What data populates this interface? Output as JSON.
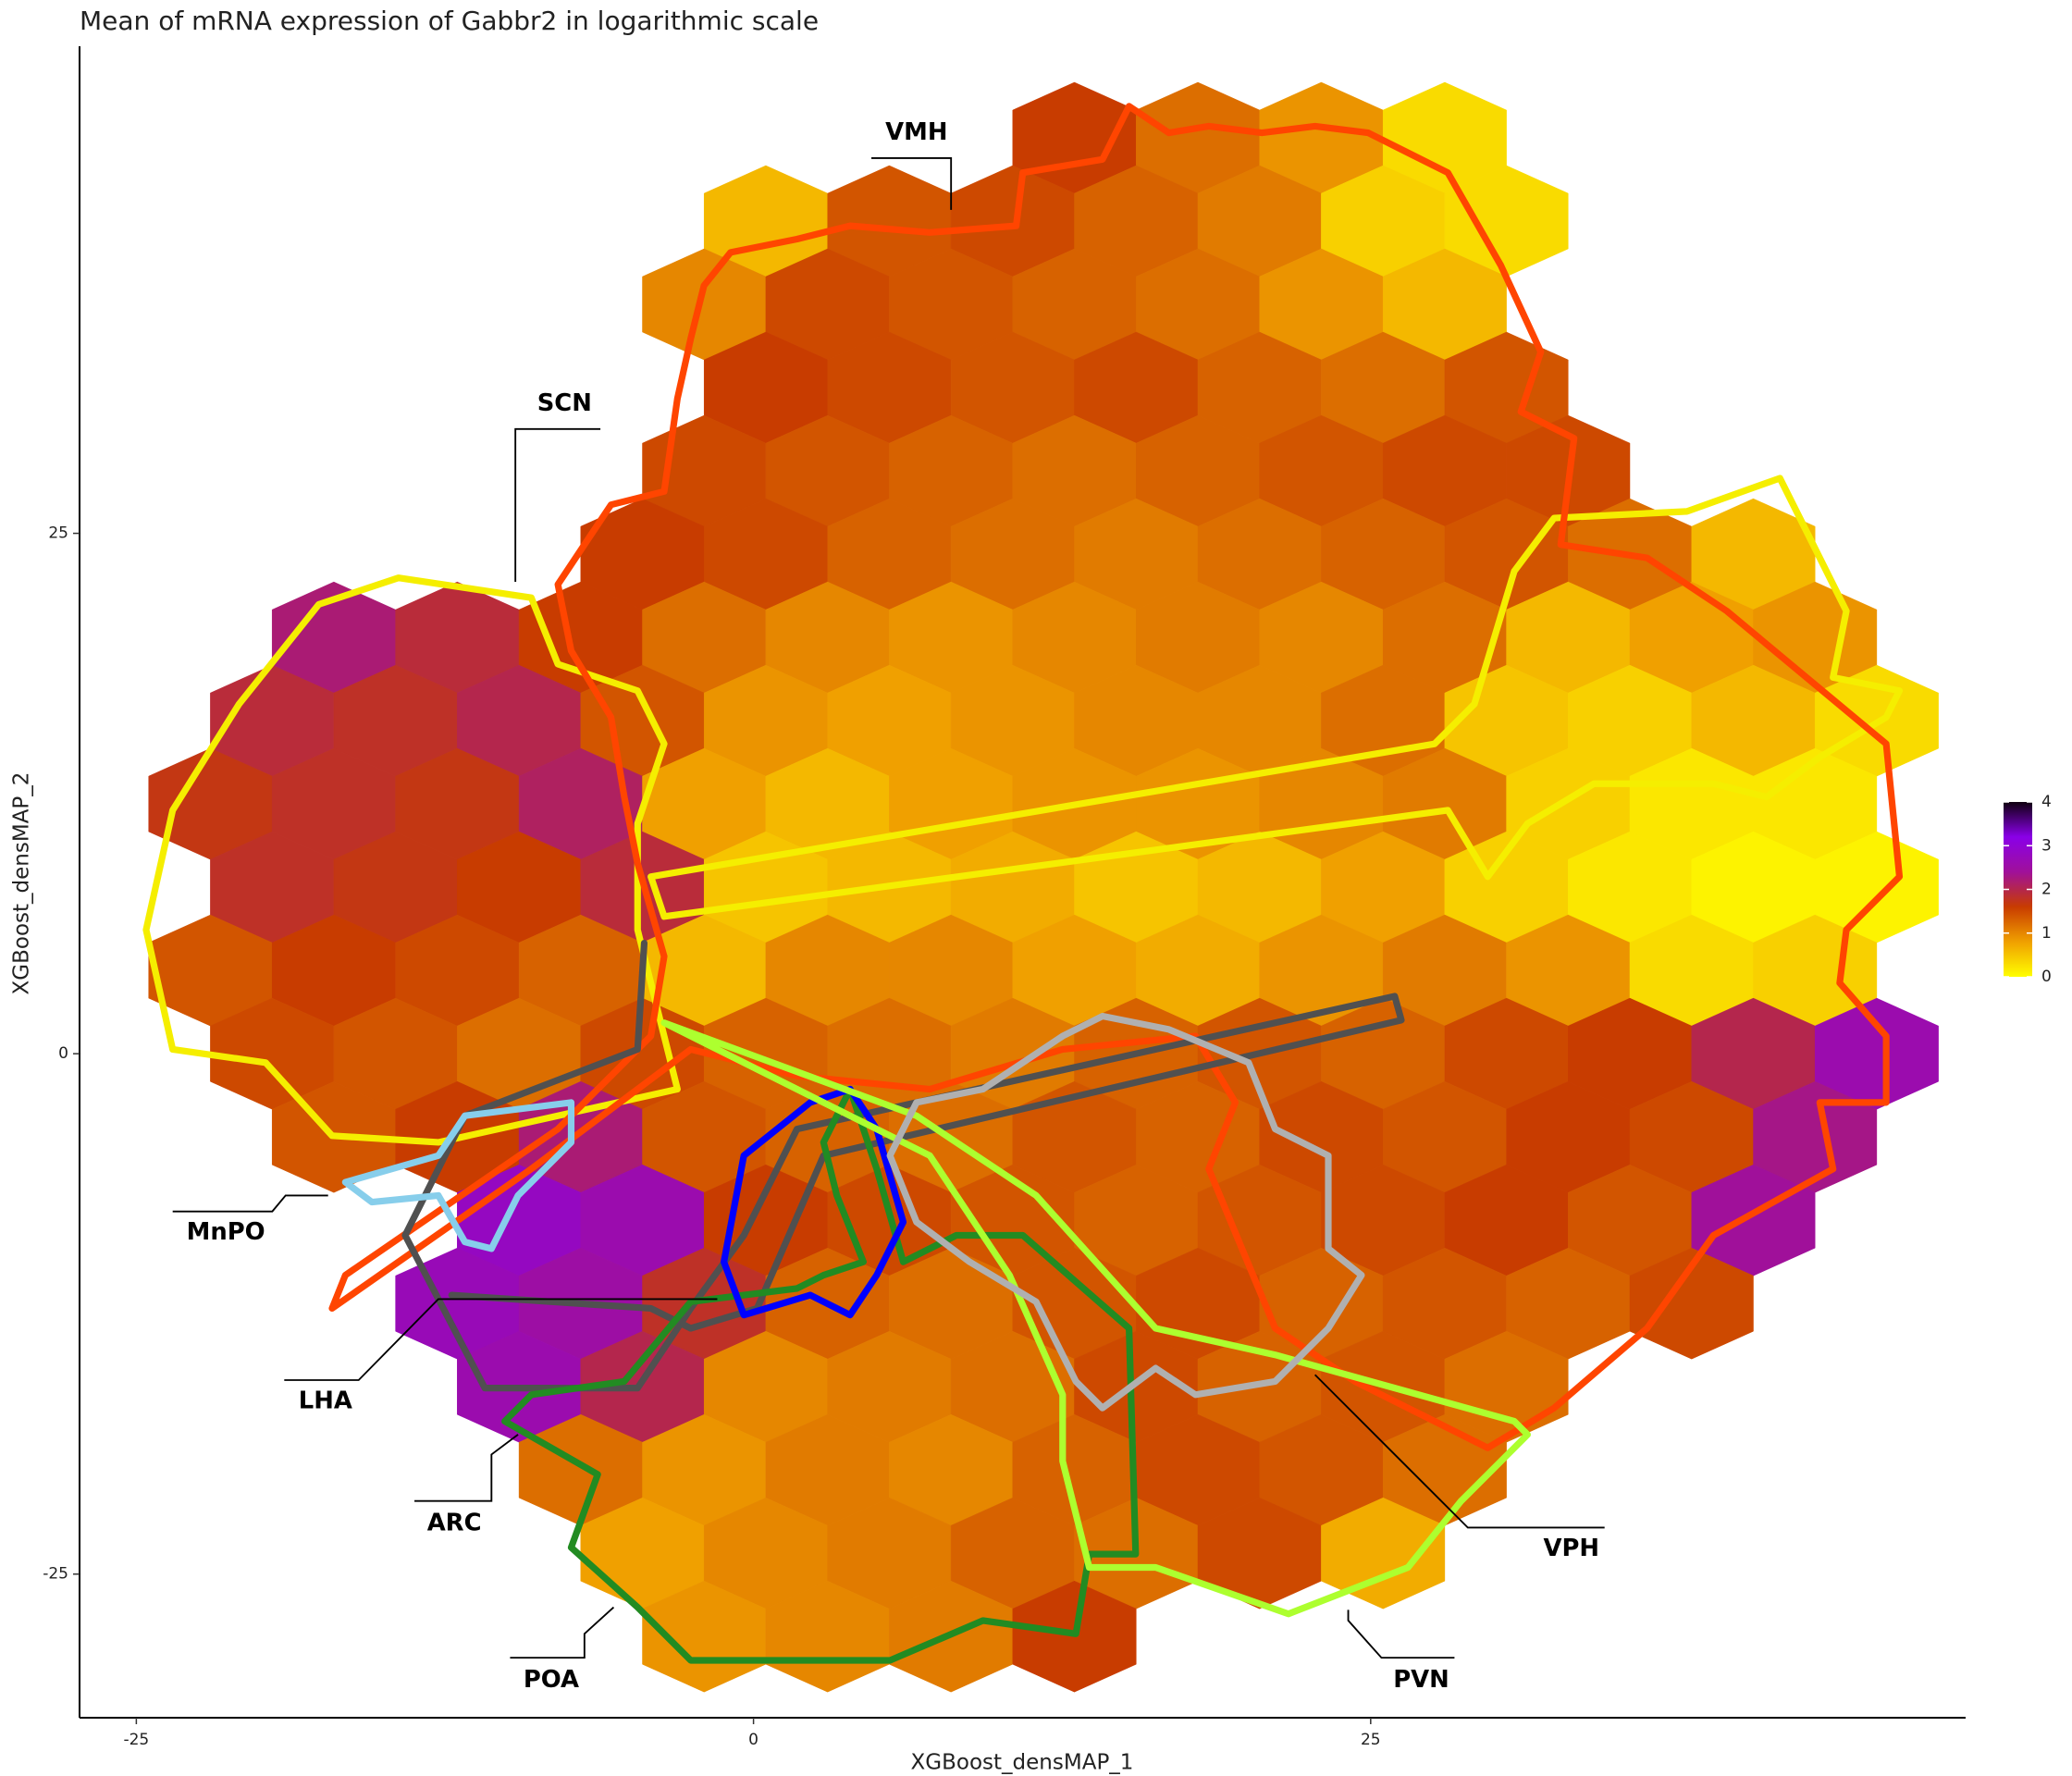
{
  "chart_data": {
    "type": "hexbin",
    "title": "Mean of mRNA expression of Gabbr2 in logarithmic scale",
    "xlabel": "XGBoost_densMAP_1",
    "ylabel": "XGBoost_densMAP_2",
    "xlim": [
      -27.3,
      49.1
    ],
    "ylim": [
      -31.9,
      48.4
    ],
    "xticks": [
      -25,
      0,
      25
    ],
    "yticks": [
      -25,
      0,
      25
    ],
    "rows": [
      {
        "y": 44,
        "x": [
          13,
          18,
          23,
          28
        ],
        "values": [
          1.6,
          1.2,
          0.9,
          0.3
        ]
      },
      {
        "y": 40,
        "x": [
          0.5,
          5.5,
          10.5,
          15.5,
          20.5,
          25.5,
          30.5
        ],
        "values": [
          0.6,
          1.4,
          1.5,
          1.3,
          1.1,
          0.4,
          0.3
        ]
      },
      {
        "y": 36,
        "x": [
          -2,
          3,
          8,
          13,
          18,
          23,
          28
        ],
        "values": [
          1.0,
          1.5,
          1.4,
          1.3,
          1.2,
          0.9,
          0.6
        ]
      },
      {
        "y": 32,
        "x": [
          0.5,
          5.5,
          10.5,
          15.5,
          20.5,
          25.5,
          30.5
        ],
        "values": [
          1.6,
          1.5,
          1.4,
          1.5,
          1.3,
          1.2,
          1.4
        ]
      },
      {
        "y": 28,
        "x": [
          -2,
          3,
          8,
          13,
          18,
          23,
          28,
          33
        ],
        "values": [
          1.5,
          1.4,
          1.3,
          1.2,
          1.3,
          1.4,
          1.5,
          1.5
        ]
      },
      {
        "y": 24,
        "x": [
          -4.5,
          0.5,
          5.5,
          10.5,
          15.5,
          20.5,
          25.5,
          30.5,
          35.5,
          40.5
        ],
        "values": [
          1.6,
          1.5,
          1.3,
          1.2,
          1.1,
          1.2,
          1.3,
          1.4,
          1.2,
          0.6
        ]
      },
      {
        "y": 20,
        "x": [
          -17,
          -12,
          -7,
          -2,
          3,
          8,
          13,
          18,
          23,
          28,
          33,
          38,
          43
        ],
        "values": [
          2.2,
          1.9,
          1.6,
          1.2,
          1.0,
          0.9,
          1.0,
          1.1,
          1.0,
          1.2,
          0.6,
          0.8,
          0.9
        ]
      },
      {
        "y": 16,
        "x": [
          -19.5,
          -14.5,
          -9.5,
          -4.5,
          0.5,
          5.5,
          10.5,
          15.5,
          20.5,
          25.5,
          30.5,
          35.5,
          40.5,
          45.5
        ],
        "values": [
          1.9,
          1.8,
          2.0,
          1.4,
          0.9,
          0.8,
          0.9,
          1.0,
          1.0,
          1.2,
          0.5,
          0.4,
          0.6,
          0.3
        ]
      },
      {
        "y": 12,
        "x": [
          -22,
          -17,
          -12,
          -7,
          -2,
          3,
          8,
          13,
          18,
          23,
          28,
          33,
          38,
          43
        ],
        "values": [
          1.7,
          1.8,
          1.7,
          2.1,
          0.8,
          0.6,
          0.8,
          0.9,
          0.9,
          1.0,
          1.1,
          0.4,
          0.2,
          0.2
        ]
      },
      {
        "y": 8,
        "x": [
          -19.5,
          -14.5,
          -9.5,
          -4.5,
          0.5,
          5.5,
          10.5,
          15.5,
          20.5,
          25.5,
          30.5,
          35.5,
          40.5,
          45.5
        ],
        "values": [
          1.8,
          1.7,
          1.6,
          1.9,
          0.5,
          0.6,
          0.7,
          0.5,
          0.6,
          0.8,
          0.4,
          0.2,
          0.1,
          0.1
        ]
      },
      {
        "y": 4,
        "x": [
          -22,
          -17,
          -12,
          -7,
          -2,
          3,
          8,
          13,
          18,
          23,
          28,
          33,
          38,
          43
        ],
        "values": [
          1.4,
          1.6,
          1.5,
          1.3,
          0.6,
          1.0,
          1.0,
          0.8,
          0.7,
          0.9,
          1.1,
          0.9,
          0.3,
          0.4
        ]
      },
      {
        "y": 0,
        "x": [
          -19.5,
          -14.5,
          -9.5,
          -4.5,
          0.5,
          5.5,
          10.5,
          15.5,
          20.5,
          25.5,
          30.5,
          35.5,
          40.5,
          45.5
        ],
        "values": [
          1.5,
          1.4,
          1.2,
          1.5,
          1.3,
          1.2,
          1.1,
          1.3,
          1.4,
          1.3,
          1.5,
          1.6,
          2.0,
          2.6
        ]
      },
      {
        "y": -4,
        "x": [
          -17,
          -12,
          -7,
          -2,
          3,
          8,
          13,
          18,
          23,
          28,
          33,
          38,
          43
        ],
        "values": [
          1.4,
          1.6,
          2.2,
          1.4,
          1.3,
          1.2,
          1.4,
          1.3,
          1.5,
          1.4,
          1.6,
          1.5,
          2.3
        ]
      },
      {
        "y": -8,
        "x": [
          -9.5,
          -4.5,
          0.5,
          5.5,
          10.5,
          15.5,
          20.5,
          25.5,
          30.5,
          35.5,
          40.5
        ],
        "values": [
          2.8,
          2.6,
          1.6,
          1.5,
          1.4,
          1.3,
          1.4,
          1.5,
          1.6,
          1.4,
          2.4
        ]
      },
      {
        "y": -12,
        "x": [
          -12,
          -7,
          -2,
          3,
          8,
          13,
          18,
          23,
          28,
          33,
          38
        ],
        "values": [
          2.7,
          2.5,
          1.8,
          1.3,
          1.2,
          1.4,
          1.5,
          1.3,
          1.4,
          1.3,
          1.5
        ]
      },
      {
        "y": -16,
        "x": [
          -9.5,
          -4.5,
          0.5,
          5.5,
          10.5,
          15.5,
          20.5,
          25.5,
          30.5
        ],
        "values": [
          2.6,
          2.0,
          1.0,
          1.1,
          1.2,
          1.5,
          1.3,
          1.4,
          1.2
        ]
      },
      {
        "y": -20,
        "x": [
          -7,
          -2,
          3,
          8,
          13,
          18,
          23,
          28
        ],
        "values": [
          1.2,
          0.9,
          1.1,
          1.0,
          1.3,
          1.5,
          1.4,
          1.2
        ]
      },
      {
        "y": -24,
        "x": [
          -4.5,
          0.5,
          5.5,
          10.5,
          15.5,
          20.5,
          25.5
        ],
        "values": [
          0.8,
          1.0,
          1.1,
          1.3,
          1.2,
          1.5,
          0.7
        ]
      },
      {
        "y": -28,
        "x": [
          -2,
          3,
          8,
          13
        ],
        "values": [
          0.9,
          1.0,
          1.1,
          1.6
        ]
      }
    ],
    "colorbar": {
      "lim": [
        0,
        4
      ],
      "ticks": [
        0,
        1,
        2,
        3,
        4
      ],
      "colors": [
        "#ffff00",
        "#f0a000",
        "#c83c00",
        "#a0109a",
        "#8a00e8",
        "#100010"
      ]
    },
    "regions": [
      "VMH",
      "SCN",
      "MnPO",
      "LHA",
      "ARC",
      "POA",
      "PVN",
      "VPH"
    ]
  }
}
